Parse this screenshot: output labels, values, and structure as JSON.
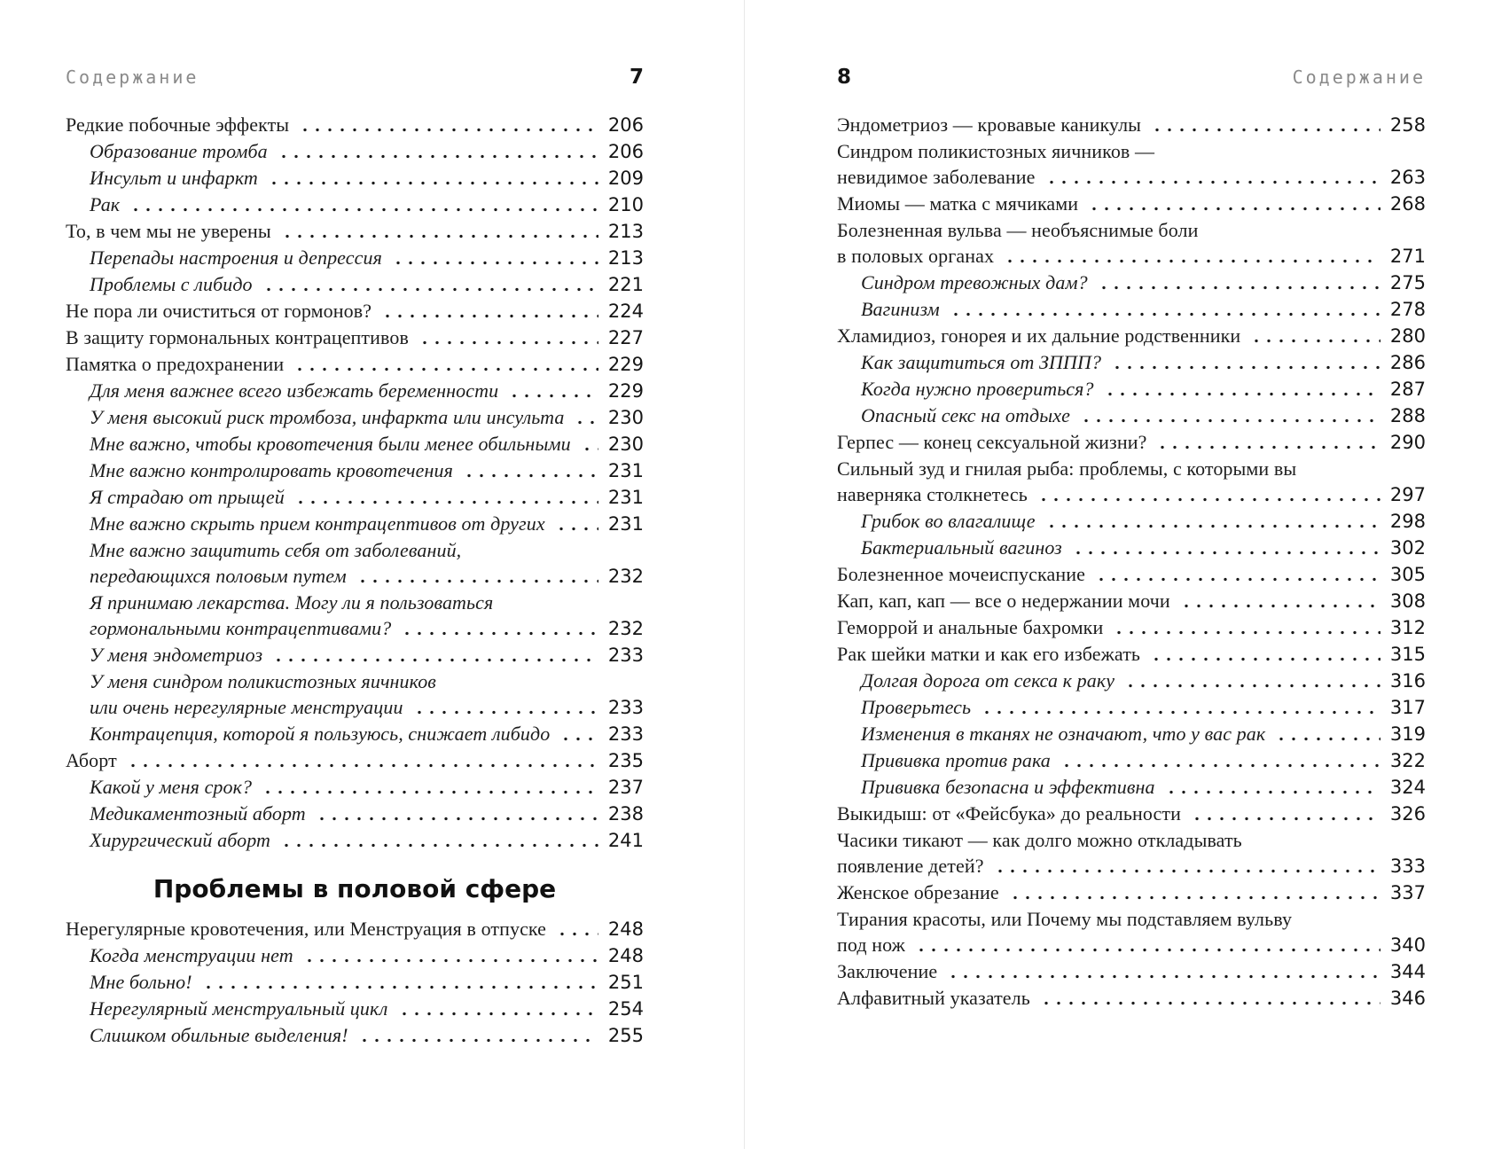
{
  "colors": {
    "ink": "#1d1d1d",
    "header_gray": "#8a8a8a",
    "gutter_line": "#e8e8e8"
  },
  "left_page": {
    "running_title": "Содержание",
    "folio": "7",
    "rows": [
      {
        "text": "Редкие побочные эффекты",
        "page": "206"
      },
      {
        "text": "Образование тромба",
        "page": "206",
        "sub": true,
        "italic": true
      },
      {
        "text": "Инсульт и инфаркт",
        "page": "209",
        "sub": true,
        "italic": true
      },
      {
        "text": "Рак",
        "page": "210",
        "sub": true,
        "italic": true
      },
      {
        "text": "То, в чем мы не уверены",
        "page": "213"
      },
      {
        "text": "Перепады настроения и депрессия",
        "page": "213",
        "sub": true,
        "italic": true
      },
      {
        "text": "Проблемы с либидо",
        "page": "221",
        "sub": true,
        "italic": true
      },
      {
        "text": "Не пора ли очиститься от гормонов?",
        "page": "224"
      },
      {
        "text": "В защиту гормональных контрацептивов",
        "page": "227"
      },
      {
        "text": "Памятка о предохранении",
        "page": "229"
      },
      {
        "text": "Для меня важнее всего избежать беременности",
        "page": "229",
        "sub": true,
        "italic": true
      },
      {
        "text": "У меня высокий риск тромбоза, инфаркта или инсульта",
        "page": "230",
        "sub": true,
        "italic": true
      },
      {
        "text": "Мне важно, чтобы кровотечения были менее обильными",
        "page": "230",
        "sub": true,
        "italic": true
      },
      {
        "text": "Мне важно контролировать кровотечения",
        "page": "231",
        "sub": true,
        "italic": true
      },
      {
        "text": "Я страдаю от прыщей",
        "page": "231",
        "sub": true,
        "italic": true
      },
      {
        "text": "Мне важно скрыть прием контрацептивов от других",
        "page": "231",
        "sub": true,
        "italic": true
      },
      {
        "text": "Мне важно защитить себя от заболеваний,",
        "sub": true,
        "italic": true
      },
      {
        "text": "передающихся половым путем",
        "page": "232",
        "sub": true,
        "italic": true
      },
      {
        "text": "Я принимаю лекарства. Могу ли я пользоваться",
        "sub": true,
        "italic": true
      },
      {
        "text": "гормональными контрацептивами?",
        "page": "232",
        "sub": true,
        "italic": true
      },
      {
        "text": "У меня эндометриоз",
        "page": "233",
        "sub": true,
        "italic": true
      },
      {
        "text": "У меня синдром поликистозных яичников",
        "sub": true,
        "italic": true
      },
      {
        "text": "или очень нерегулярные менструации",
        "page": "233",
        "sub": true,
        "italic": true
      },
      {
        "text": "Контрацепция, которой я пользуюсь, снижает либидо",
        "page": "233",
        "sub": true,
        "italic": true
      },
      {
        "text": "Аборт",
        "page": "235"
      },
      {
        "text": "Какой у меня срок?",
        "page": "237",
        "sub": true,
        "italic": true
      },
      {
        "text": "Медикаментозный аборт",
        "page": "238",
        "sub": true,
        "italic": true
      },
      {
        "text": "Хирургический аборт",
        "page": "241",
        "sub": true,
        "italic": true
      },
      {
        "type": "heading",
        "text": "Проблемы в половой сфере"
      },
      {
        "text": "Нерегулярные кровотечения, или Менструация в отпуске",
        "page": "248"
      },
      {
        "text": "Когда менструации нет",
        "page": "248",
        "sub": true,
        "italic": true
      },
      {
        "text": "Мне больно!",
        "page": "251",
        "sub": true,
        "italic": true
      },
      {
        "text": "Нерегулярный менструальный цикл",
        "page": "254",
        "sub": true,
        "italic": true
      },
      {
        "text": "Слишком обильные выделения!",
        "page": "255",
        "sub": true,
        "italic": true
      }
    ]
  },
  "right_page": {
    "running_title": "Содержание",
    "folio": "8",
    "rows": [
      {
        "text": "Эндометриоз — кровавые каникулы",
        "page": "258"
      },
      {
        "text": "Синдром поликистозных яичников —"
      },
      {
        "text": "невидимое заболевание",
        "page": "263"
      },
      {
        "text": "Миомы — матка с мячиками",
        "page": "268"
      },
      {
        "text": "Болезненная вульва — необъяснимые боли"
      },
      {
        "text": "в половых органах",
        "page": "271"
      },
      {
        "text": "Синдром тревожных дам?",
        "page": "275",
        "sub": true,
        "italic": true
      },
      {
        "text": "Вагинизм",
        "page": "278",
        "sub": true,
        "italic": true
      },
      {
        "text": "Хламидиоз, гонорея и их дальние родственники",
        "page": "280"
      },
      {
        "text": "Как защититься от ЗППП?",
        "page": "286",
        "sub": true,
        "italic": true
      },
      {
        "text": "Когда нужно провериться?",
        "page": "287",
        "sub": true,
        "italic": true
      },
      {
        "text": "Опасный секс на отдыхе",
        "page": "288",
        "sub": true,
        "italic": true
      },
      {
        "text": "Герпес — конец сексуальной жизни?",
        "page": "290"
      },
      {
        "text": "Сильный зуд и гнилая рыба: проблемы, с которыми вы"
      },
      {
        "text": "наверняка столкнетесь",
        "page": "297"
      },
      {
        "text": "Грибок во влагалище",
        "page": "298",
        "sub": true,
        "italic": true
      },
      {
        "text": "Бактериальный вагиноз",
        "page": "302",
        "sub": true,
        "italic": true
      },
      {
        "text": "Болезненное мочеиспускание",
        "page": "305"
      },
      {
        "text": "Кап, кап, кап — все о недержании мочи",
        "page": "308"
      },
      {
        "text": "Геморрой и анальные бахромки",
        "page": "312"
      },
      {
        "text": "Рак шейки матки и как его избежать",
        "page": "315"
      },
      {
        "text": "Долгая дорога от секса к раку",
        "page": "316",
        "sub": true,
        "italic": true
      },
      {
        "text": "Проверьтесь",
        "page": "317",
        "sub": true,
        "italic": true
      },
      {
        "text": "Изменения в тканях не означают, что у вас рак",
        "page": "319",
        "sub": true,
        "italic": true
      },
      {
        "text": "Прививка против рака",
        "page": "322",
        "sub": true,
        "italic": true
      },
      {
        "text": "Прививка безопасна и эффективна",
        "page": "324",
        "sub": true,
        "italic": true
      },
      {
        "text": "Выкидыш: от «Фейсбука» до реальности",
        "page": "326"
      },
      {
        "text": "Часики тикают — как долго можно откладывать"
      },
      {
        "text": "появление детей?",
        "page": "333"
      },
      {
        "text": "Женское обрезание",
        "page": "337"
      },
      {
        "text": "Тирания красоты, или Почему мы подставляем вульву"
      },
      {
        "text": "под нож",
        "page": "340"
      },
      {
        "text": "Заключение",
        "page": "344"
      },
      {
        "text": "Алфавитный указатель",
        "page": "346"
      }
    ]
  }
}
